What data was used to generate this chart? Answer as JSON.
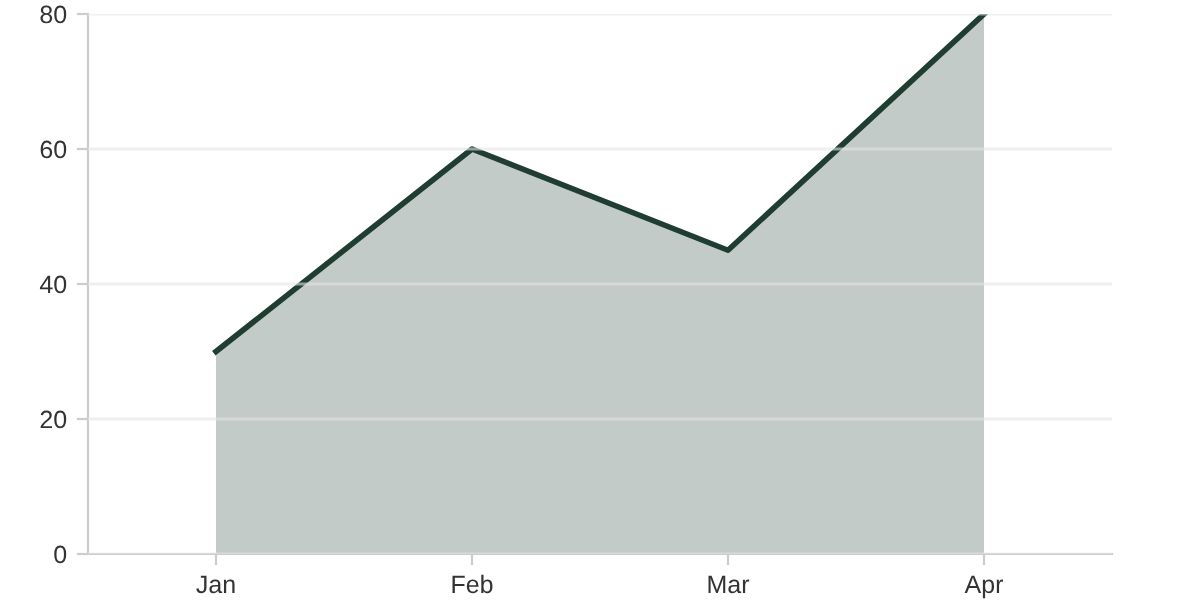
{
  "chart_data": {
    "type": "area",
    "categories": [
      "Jan",
      "Feb",
      "Mar",
      "Apr"
    ],
    "series": [
      {
        "color": "#1f3d30",
        "values": [
          30,
          60,
          45,
          80
        ]
      }
    ],
    "ylim": [
      0,
      80
    ],
    "yticks": [
      0,
      20,
      40,
      60,
      80
    ],
    "grid": "y",
    "legend": false
  }
}
